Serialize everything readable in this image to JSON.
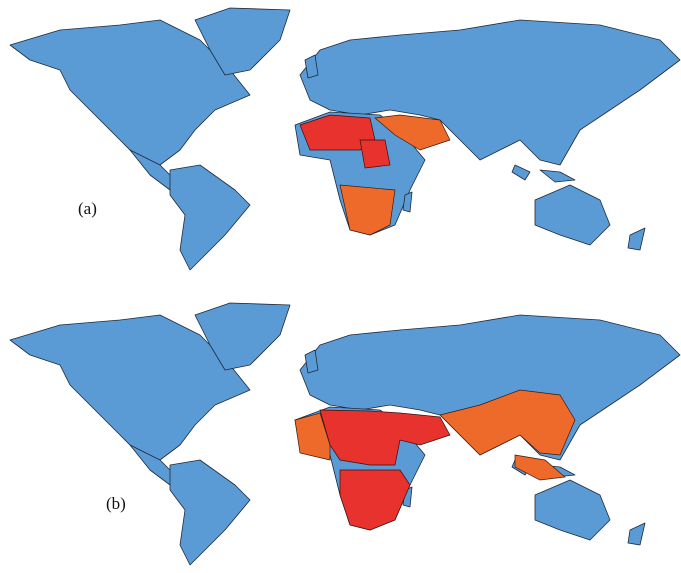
{
  "maps": [
    {
      "label": "(a)"
    },
    {
      "label": "(b)"
    }
  ]
}
